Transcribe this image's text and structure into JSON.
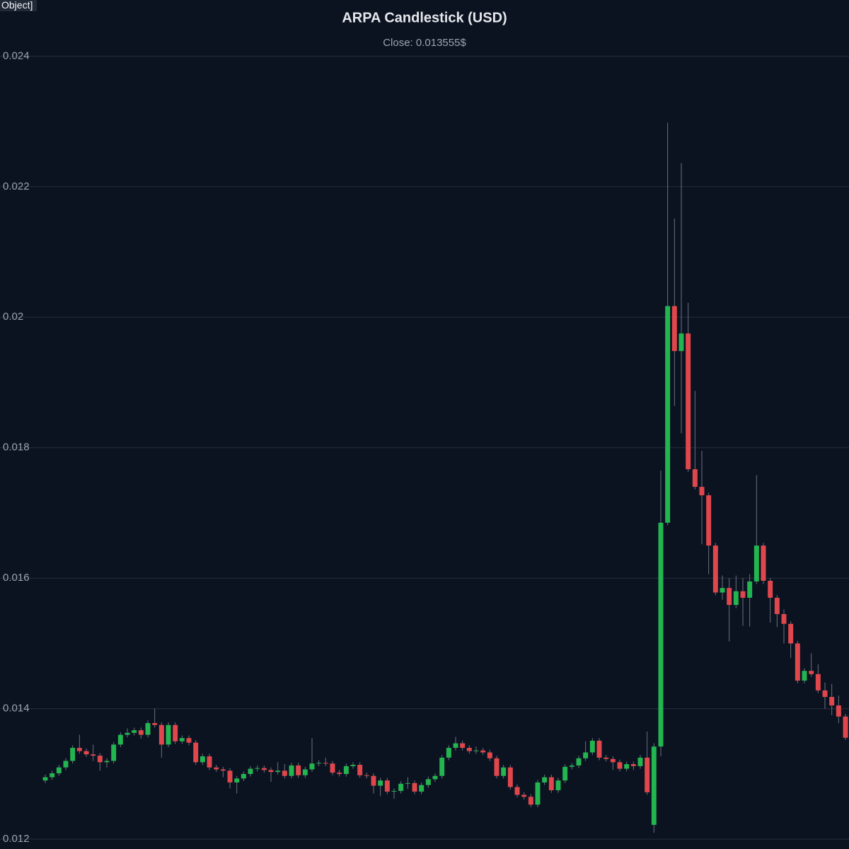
{
  "tooltip_label": "Object]",
  "chart_data": {
    "type": "candlestick",
    "title": "ARPA Candlestick (USD)",
    "subtitle": "Close: 0.013555$",
    "up_color": "#22b550",
    "down_color": "#e0474c",
    "wick_color": "#6b7280",
    "grid": true,
    "ylim": [
      0.01185,
      0.02486
    ],
    "yticks": [
      0.012,
      0.014,
      0.016,
      0.018,
      0.02,
      0.022,
      0.024
    ],
    "open": [
      0.0129,
      0.01295,
      0.01301,
      0.0131,
      0.0132,
      0.0134,
      0.01335,
      0.0133,
      0.01328,
      0.01318,
      0.0132,
      0.01345,
      0.0136,
      0.01363,
      0.01367,
      0.0136,
      0.01378,
      0.01375,
      0.01345,
      0.01375,
      0.0135,
      0.01355,
      0.01348,
      0.01318,
      0.01327,
      0.0131,
      0.01307,
      0.01305,
      0.01287,
      0.01293,
      0.013,
      0.01308,
      0.01309,
      0.01306,
      0.01303,
      0.01305,
      0.01297,
      0.01313,
      0.01298,
      0.01307,
      0.01316,
      0.01317,
      0.01316,
      0.01302,
      0.013,
      0.01312,
      0.01314,
      0.01298,
      0.01297,
      0.01282,
      0.0129,
      0.01273,
      0.01274,
      0.01285,
      0.01286,
      0.01273,
      0.01283,
      0.01292,
      0.01297,
      0.01325,
      0.0134,
      0.01347,
      0.0134,
      0.01335,
      0.01336,
      0.01333,
      0.01324,
      0.01297,
      0.0131,
      0.0128,
      0.01268,
      0.01265,
      0.01253,
      0.01287,
      0.01295,
      0.01275,
      0.0129,
      0.01311,
      0.01313,
      0.01324,
      0.01333,
      0.01351,
      0.01325,
      0.01323,
      0.01318,
      0.01308,
      0.01315,
      0.01312,
      0.01325,
      0.01222,
      0.01342,
      0.01685,
      0.02017,
      0.01948,
      0.01975,
      0.01767,
      0.0174,
      0.01727,
      0.0165,
      0.01578,
      0.01585,
      0.01559,
      0.0158,
      0.0157,
      0.01595,
      0.0165,
      0.01596,
      0.0157,
      0.01545,
      0.0153,
      0.015,
      0.01443,
      0.01458,
      0.01453,
      0.01428,
      0.01418,
      0.01405,
      0.01388
    ],
    "high": [
      0.01299,
      0.01305,
      0.01314,
      0.01324,
      0.01344,
      0.0136,
      0.01339,
      0.01345,
      0.01332,
      0.01324,
      0.01349,
      0.01364,
      0.0137,
      0.01371,
      0.01371,
      0.01382,
      0.014,
      0.01379,
      0.01379,
      0.01379,
      0.01359,
      0.01359,
      0.01352,
      0.01331,
      0.01331,
      0.01314,
      0.01311,
      0.01309,
      0.01297,
      0.01304,
      0.01312,
      0.01313,
      0.01313,
      0.0131,
      0.01318,
      0.01315,
      0.01317,
      0.01317,
      0.01311,
      0.01355,
      0.01321,
      0.01325,
      0.0132,
      0.01306,
      0.01316,
      0.01318,
      0.01318,
      0.01302,
      0.01301,
      0.01294,
      0.01294,
      0.01278,
      0.01289,
      0.01295,
      0.0129,
      0.01287,
      0.01296,
      0.01301,
      0.01329,
      0.01344,
      0.01357,
      0.01351,
      0.01344,
      0.01342,
      0.0134,
      0.01337,
      0.01328,
      0.01314,
      0.01314,
      0.01284,
      0.01272,
      0.01269,
      0.01291,
      0.01299,
      0.01299,
      0.01294,
      0.01315,
      0.01317,
      0.01328,
      0.0135,
      0.01355,
      0.01355,
      0.01329,
      0.01327,
      0.01322,
      0.01319,
      0.01319,
      0.01329,
      0.01365,
      0.01347,
      0.01765,
      0.02298,
      0.02151,
      0.02236,
      0.02022,
      0.01887,
      0.01795,
      0.01731,
      0.01654,
      0.01604,
      0.016,
      0.01604,
      0.016,
      0.01606,
      0.01758,
      0.01654,
      0.016,
      0.01574,
      0.01552,
      0.01534,
      0.01504,
      0.01462,
      0.01485,
      0.01468,
      0.0144,
      0.01438,
      0.0142,
      0.01392
    ],
    "low": [
      0.01286,
      0.01291,
      0.01297,
      0.01306,
      0.01316,
      0.01331,
      0.01326,
      0.0132,
      0.01305,
      0.0131,
      0.01316,
      0.01341,
      0.01356,
      0.01359,
      0.01354,
      0.01356,
      0.01371,
      0.01325,
      0.01341,
      0.01346,
      0.01346,
      0.01344,
      0.01314,
      0.01314,
      0.01306,
      0.01303,
      0.01295,
      0.01278,
      0.0127,
      0.01289,
      0.01296,
      0.01304,
      0.01302,
      0.01288,
      0.01299,
      0.01293,
      0.01293,
      0.01294,
      0.01294,
      0.01303,
      0.01312,
      0.01312,
      0.01298,
      0.01296,
      0.01296,
      0.01308,
      0.01294,
      0.01293,
      0.0127,
      0.01266,
      0.01269,
      0.01262,
      0.0127,
      0.01277,
      0.01269,
      0.01269,
      0.01279,
      0.01288,
      0.01293,
      0.01321,
      0.01336,
      0.01336,
      0.01331,
      0.01331,
      0.01329,
      0.0132,
      0.01293,
      0.01293,
      0.01276,
      0.01264,
      0.01261,
      0.01249,
      0.01249,
      0.01283,
      0.01271,
      0.01271,
      0.01286,
      0.01307,
      0.01309,
      0.0132,
      0.01329,
      0.01321,
      0.01319,
      0.01306,
      0.01304,
      0.01304,
      0.01306,
      0.01308,
      0.01268,
      0.0121,
      0.01327,
      0.01681,
      0.01864,
      0.01822,
      0.01763,
      0.01736,
      0.01652,
      0.01606,
      0.01574,
      0.01567,
      0.01503,
      0.01554,
      0.01527,
      0.01526,
      0.01591,
      0.01591,
      0.01532,
      0.01525,
      0.015,
      0.01478,
      0.01439,
      0.01439,
      0.01449,
      0.01424,
      0.014,
      0.0139,
      0.01378,
      0.01352
    ],
    "close": [
      0.01295,
      0.01301,
      0.0131,
      0.0132,
      0.0134,
      0.01335,
      0.0133,
      0.01328,
      0.01318,
      0.0132,
      0.01345,
      0.0136,
      0.01363,
      0.01367,
      0.0136,
      0.01378,
      0.01375,
      0.01345,
      0.01375,
      0.0135,
      0.01355,
      0.01348,
      0.01318,
      0.01327,
      0.0131,
      0.01307,
      0.01305,
      0.01287,
      0.01293,
      0.013,
      0.01308,
      0.01309,
      0.01306,
      0.01303,
      0.01305,
      0.01297,
      0.01313,
      0.01298,
      0.01307,
      0.01316,
      0.01317,
      0.01316,
      0.01302,
      0.013,
      0.01312,
      0.01314,
      0.01298,
      0.01297,
      0.01282,
      0.0129,
      0.01273,
      0.01274,
      0.01285,
      0.01286,
      0.01273,
      0.01283,
      0.01292,
      0.01297,
      0.01325,
      0.0134,
      0.01347,
      0.0134,
      0.01335,
      0.01336,
      0.01333,
      0.01324,
      0.01297,
      0.0131,
      0.0128,
      0.01268,
      0.01265,
      0.01253,
      0.01287,
      0.01295,
      0.01275,
      0.0129,
      0.01311,
      0.01313,
      0.01324,
      0.01333,
      0.01351,
      0.01325,
      0.01323,
      0.01318,
      0.01308,
      0.01315,
      0.01312,
      0.01325,
      0.01272,
      0.01342,
      0.01685,
      0.02017,
      0.01948,
      0.01975,
      0.01767,
      0.0174,
      0.01727,
      0.0165,
      0.01578,
      0.01585,
      0.01559,
      0.0158,
      0.0157,
      0.01595,
      0.0165,
      0.01596,
      0.0157,
      0.01545,
      0.0153,
      0.015,
      0.01443,
      0.01458,
      0.01453,
      0.01428,
      0.01418,
      0.01405,
      0.01388,
      0.013555
    ]
  }
}
